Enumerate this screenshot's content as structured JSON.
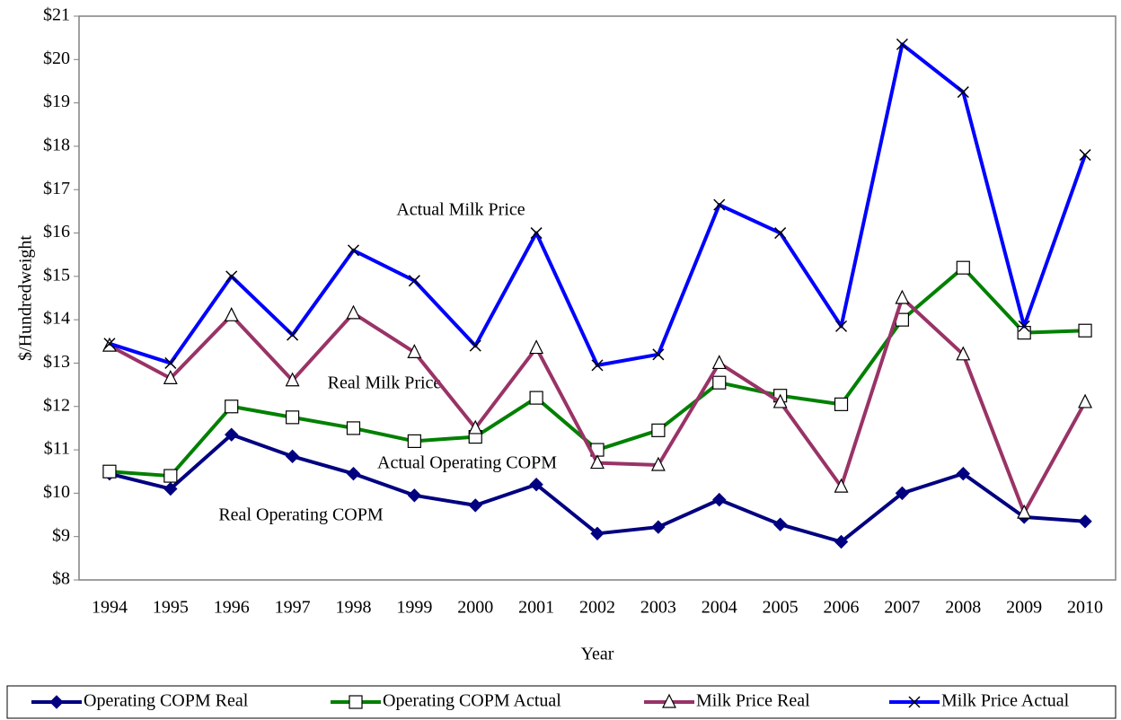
{
  "chart_data": {
    "type": "line",
    "xlabel": "Year",
    "ylabel": "$/Hundredweight",
    "categories": [
      "1994",
      "1995",
      "1996",
      "1997",
      "1998",
      "1999",
      "2000",
      "2001",
      "2002",
      "2003",
      "2004",
      "2005",
      "2006",
      "2007",
      "2008",
      "2009",
      "2010"
    ],
    "series": [
      {
        "name": "Operating COPM Real",
        "color": "#000080",
        "marker": "diamond",
        "values": [
          10.45,
          10.1,
          11.35,
          10.85,
          10.45,
          9.95,
          9.72,
          10.2,
          9.07,
          9.22,
          9.85,
          9.28,
          8.88,
          10.0,
          10.45,
          9.45,
          9.35
        ]
      },
      {
        "name": "Operating COPM Actual",
        "color": "#008000",
        "marker": "square",
        "values": [
          10.5,
          10.4,
          12.0,
          11.75,
          11.5,
          11.2,
          11.3,
          12.2,
          11.0,
          11.45,
          12.55,
          12.25,
          12.05,
          14.0,
          15.2,
          13.7,
          13.75
        ]
      },
      {
        "name": "Milk Price Real",
        "color": "#993366",
        "marker": "triangle",
        "values": [
          13.4,
          12.65,
          14.1,
          12.6,
          14.15,
          13.25,
          11.5,
          13.35,
          10.7,
          10.65,
          13.0,
          12.1,
          10.15,
          14.5,
          13.2,
          9.55,
          12.1
        ]
      },
      {
        "name": "Milk Price Actual",
        "color": "#0000ff",
        "marker": "x",
        "values": [
          13.45,
          13.0,
          15.0,
          13.65,
          15.6,
          14.9,
          13.4,
          16.0,
          12.95,
          13.2,
          16.65,
          16.0,
          13.85,
          20.35,
          19.25,
          13.85,
          17.8
        ]
      }
    ],
    "annotations": [
      "Actual Milk Price",
      "Real Milk Price",
      "Actual Operating COPM",
      "Real Operating COPM"
    ],
    "ylim": [
      8,
      21
    ],
    "yticks": [
      {
        "value": 8,
        "label": "$8"
      },
      {
        "value": 9,
        "label": "$9"
      },
      {
        "value": 10,
        "label": "$10"
      },
      {
        "value": 11,
        "label": "$11"
      },
      {
        "value": 12,
        "label": "$12"
      },
      {
        "value": 13,
        "label": "$13"
      },
      {
        "value": 14,
        "label": "$14"
      },
      {
        "value": 15,
        "label": "$15"
      },
      {
        "value": 16,
        "label": "$16"
      },
      {
        "value": 17,
        "label": "$17"
      },
      {
        "value": 18,
        "label": "$18"
      },
      {
        "value": 19,
        "label": "$19"
      },
      {
        "value": 20,
        "label": "$20"
      },
      {
        "value": 21,
        "label": "$21"
      }
    ],
    "grid": false,
    "legend": "bottom"
  }
}
